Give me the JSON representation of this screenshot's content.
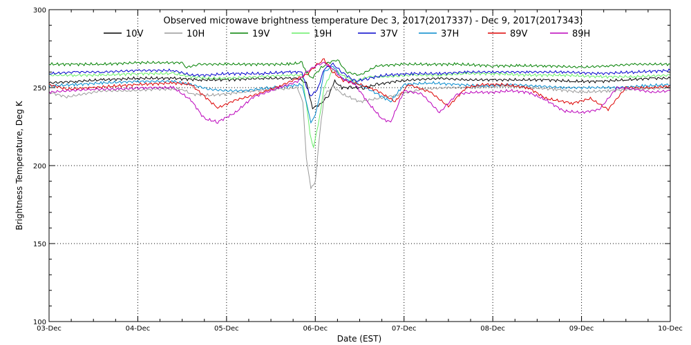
{
  "chart_data": {
    "type": "line",
    "title": "Observed microwave brightness temperature Dec  3, 2017(2017337) - Dec  9, 2017(2017343)",
    "xlabel": "Date (EST)",
    "ylabel": "Brightness Temperature, Deg K",
    "xlim": [
      0,
      7
    ],
    "ylim": [
      100,
      300
    ],
    "x_ticks": [
      {
        "x": 0,
        "label": "03-Dec"
      },
      {
        "x": 1,
        "label": "04-Dec"
      },
      {
        "x": 2,
        "label": "05-Dec"
      },
      {
        "x": 3,
        "label": "06-Dec"
      },
      {
        "x": 4,
        "label": "07-Dec"
      },
      {
        "x": 5,
        "label": "08-Dec"
      },
      {
        "x": 6,
        "label": "09-Dec"
      },
      {
        "x": 7,
        "label": "10-Dec"
      }
    ],
    "y_ticks": [
      100,
      150,
      200,
      250,
      300
    ],
    "grid": true,
    "legend_position": "top",
    "series": [
      {
        "name": "10V",
        "color": "#000000",
        "x": [
          0,
          0.3,
          0.6,
          1,
          1.4,
          1.7,
          2,
          2.4,
          2.7,
          2.8,
          2.9,
          2.97,
          3.05,
          3.15,
          3.22,
          3.3,
          3.4,
          3.55,
          3.7,
          3.9,
          4.1,
          4.4,
          4.7,
          5,
          5.3,
          5.6,
          5.9,
          6.2,
          6.5,
          6.8,
          7
        ],
        "y": [
          253,
          254,
          255,
          256,
          256,
          255,
          255,
          256,
          256,
          256,
          253,
          237,
          239,
          245,
          254,
          250,
          250,
          250,
          252,
          254,
          255,
          256,
          255,
          255,
          255,
          255,
          254,
          254,
          255,
          256,
          256
        ]
      },
      {
        "name": "10H",
        "color": "#999999",
        "x": [
          0,
          0.2,
          0.4,
          0.6,
          0.9,
          1.2,
          1.5,
          1.6,
          1.8,
          2,
          2.3,
          2.6,
          2.8,
          2.86,
          2.9,
          2.95,
          3.0,
          3.05,
          3.1,
          3.2,
          3.3,
          3.5,
          3.7,
          3.9,
          4.2,
          4.5,
          4.8,
          5.1,
          5.4,
          5.7,
          6,
          6.3,
          6.6,
          7
        ],
        "y": [
          247,
          244,
          246,
          248,
          248,
          249,
          249,
          246,
          245,
          246,
          248,
          249,
          250,
          240,
          205,
          185,
          190,
          220,
          245,
          251,
          246,
          241,
          243,
          245,
          249,
          250,
          250,
          251,
          250,
          249,
          247,
          248,
          249,
          250
        ]
      },
      {
        "name": "19V",
        "color": "#008000",
        "x": [
          0,
          0.3,
          0.6,
          1,
          1.3,
          1.5,
          1.55,
          1.7,
          2,
          2.4,
          2.7,
          2.85,
          2.9,
          2.96,
          3.05,
          3.15,
          3.25,
          3.35,
          3.5,
          3.7,
          4,
          4.3,
          4.6,
          5,
          5.3,
          5.6,
          6,
          6.3,
          6.6,
          7
        ],
        "y": [
          265,
          265,
          265,
          266,
          266,
          266,
          263,
          265,
          265,
          265,
          265,
          266,
          260,
          256,
          262,
          266,
          268,
          260,
          258,
          264,
          265,
          265,
          265,
          264,
          264,
          264,
          263,
          264,
          265,
          265
        ]
      },
      {
        "name": "19H",
        "color": "#66ee66",
        "x": [
          0,
          0.3,
          0.6,
          1,
          1.4,
          1.6,
          1.8,
          2,
          2.4,
          2.7,
          2.85,
          2.9,
          2.94,
          2.98,
          3.03,
          3.1,
          3.2,
          3.3,
          3.45,
          3.6,
          3.8,
          4.1,
          4.4,
          4.7,
          5,
          5.4,
          5.8,
          6.2,
          6.6,
          7
        ],
        "y": [
          258,
          258,
          258,
          259,
          259,
          257,
          256,
          256,
          257,
          258,
          258,
          240,
          220,
          212,
          225,
          250,
          262,
          258,
          254,
          257,
          257,
          258,
          258,
          259,
          259,
          258,
          258,
          257,
          257,
          258
        ]
      },
      {
        "name": "37V",
        "color": "#0000cc",
        "x": [
          0,
          0.3,
          0.6,
          1,
          1.4,
          1.6,
          1.8,
          2,
          2.4,
          2.7,
          2.85,
          2.9,
          2.95,
          3.02,
          3.1,
          3.2,
          3.3,
          3.45,
          3.6,
          3.8,
          4.1,
          4.4,
          4.7,
          5,
          5.4,
          5.8,
          6.2,
          6.6,
          7
        ],
        "y": [
          259,
          260,
          260,
          261,
          261,
          258,
          258,
          259,
          259,
          260,
          260,
          250,
          245,
          248,
          262,
          265,
          260,
          254,
          256,
          258,
          259,
          259,
          260,
          260,
          260,
          260,
          259,
          260,
          261
        ]
      },
      {
        "name": "37H",
        "color": "#0088cc",
        "x": [
          0,
          0.3,
          0.6,
          1,
          1.4,
          1.6,
          1.8,
          2,
          2.2,
          2.5,
          2.7,
          2.85,
          2.9,
          2.95,
          3.0,
          3.05,
          3.1,
          3.2,
          3.3,
          3.5,
          3.7,
          3.85,
          4,
          4.3,
          4.6,
          4.9,
          5.2,
          5.5,
          5.8,
          6.1,
          6.4,
          6.7,
          7
        ],
        "y": [
          251,
          252,
          253,
          254,
          254,
          252,
          249,
          248,
          248,
          250,
          251,
          252,
          240,
          228,
          232,
          245,
          260,
          264,
          256,
          252,
          246,
          241,
          252,
          253,
          252,
          251,
          252,
          251,
          250,
          250,
          250,
          251,
          252
        ]
      },
      {
        "name": "89V",
        "color": "#dd0000",
        "x": [
          0,
          0.2,
          0.5,
          1,
          1.4,
          1.6,
          1.8,
          1.9,
          2.1,
          2.3,
          2.6,
          2.8,
          2.9,
          3.0,
          3.1,
          3.2,
          3.3,
          3.5,
          3.7,
          3.9,
          4.05,
          4.3,
          4.5,
          4.7,
          4.9,
          5.1,
          5.4,
          5.6,
          5.9,
          6.1,
          6.3,
          6.5,
          6.8,
          7
        ],
        "y": [
          252,
          249,
          250,
          252,
          253,
          252,
          242,
          237,
          242,
          245,
          251,
          256,
          258,
          264,
          268,
          260,
          255,
          252,
          248,
          241,
          252,
          247,
          238,
          250,
          252,
          252,
          250,
          243,
          240,
          243,
          236,
          250,
          250,
          251
        ]
      },
      {
        "name": "89H",
        "color": "#bb00bb",
        "x": [
          0,
          0.2,
          0.5,
          0.8,
          1.1,
          1.4,
          1.6,
          1.75,
          1.9,
          2.1,
          2.3,
          2.6,
          2.8,
          2.9,
          3.0,
          3.1,
          3.2,
          3.3,
          3.45,
          3.6,
          3.75,
          3.85,
          4,
          4.2,
          4.4,
          4.6,
          4.8,
          5,
          5.2,
          5.4,
          5.6,
          5.8,
          6,
          6.2,
          6.4,
          6.6,
          6.8,
          7
        ],
        "y": [
          247,
          248,
          249,
          249,
          250,
          250,
          242,
          230,
          228,
          234,
          244,
          250,
          254,
          260,
          264,
          266,
          262,
          256,
          252,
          240,
          230,
          228,
          248,
          246,
          234,
          246,
          247,
          247,
          248,
          247,
          242,
          235,
          234,
          236,
          250,
          249,
          247,
          248
        ]
      }
    ]
  }
}
